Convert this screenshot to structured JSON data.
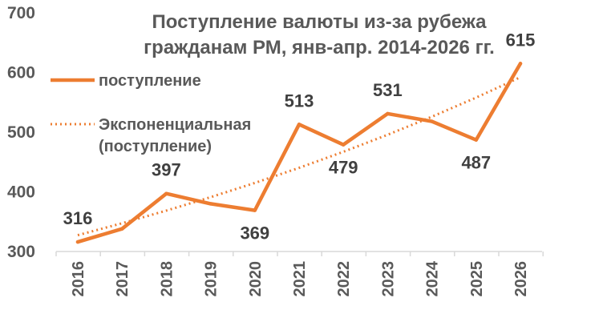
{
  "chart_data": {
    "type": "line",
    "title": "Поступление валюты из-за рубежа гражданам РМ, янв-апр. 2014-2026 гг.",
    "title_lines": [
      "Поступление валюты из-за рубежа",
      "гражданам РМ, янв-апр. 2014-2026 гг."
    ],
    "categories": [
      "2016",
      "2017",
      "2018",
      "2019",
      "2020",
      "2021",
      "2022",
      "2023",
      "2024",
      "2025",
      "2026"
    ],
    "series": [
      {
        "name": "поступление",
        "values": [
          316,
          338,
          397,
          380,
          369,
          513,
          479,
          531,
          518,
          487,
          615
        ],
        "data_labels": [
          "316",
          null,
          "397",
          null,
          "369",
          "513",
          "479",
          "531",
          null,
          "487",
          "615"
        ],
        "color": "#ED7D31"
      }
    ],
    "trendline": {
      "type": "exponential",
      "name": "Экспоненциальная (поступление)",
      "legend_lines": [
        "Экспоненциальная",
        "(поступление)"
      ],
      "color": "#ED7D31"
    },
    "yticks": [
      "300",
      "400",
      "500",
      "600",
      "700"
    ],
    "ylim": [
      300,
      700
    ],
    "grid": false,
    "legend_position": "top-left"
  }
}
